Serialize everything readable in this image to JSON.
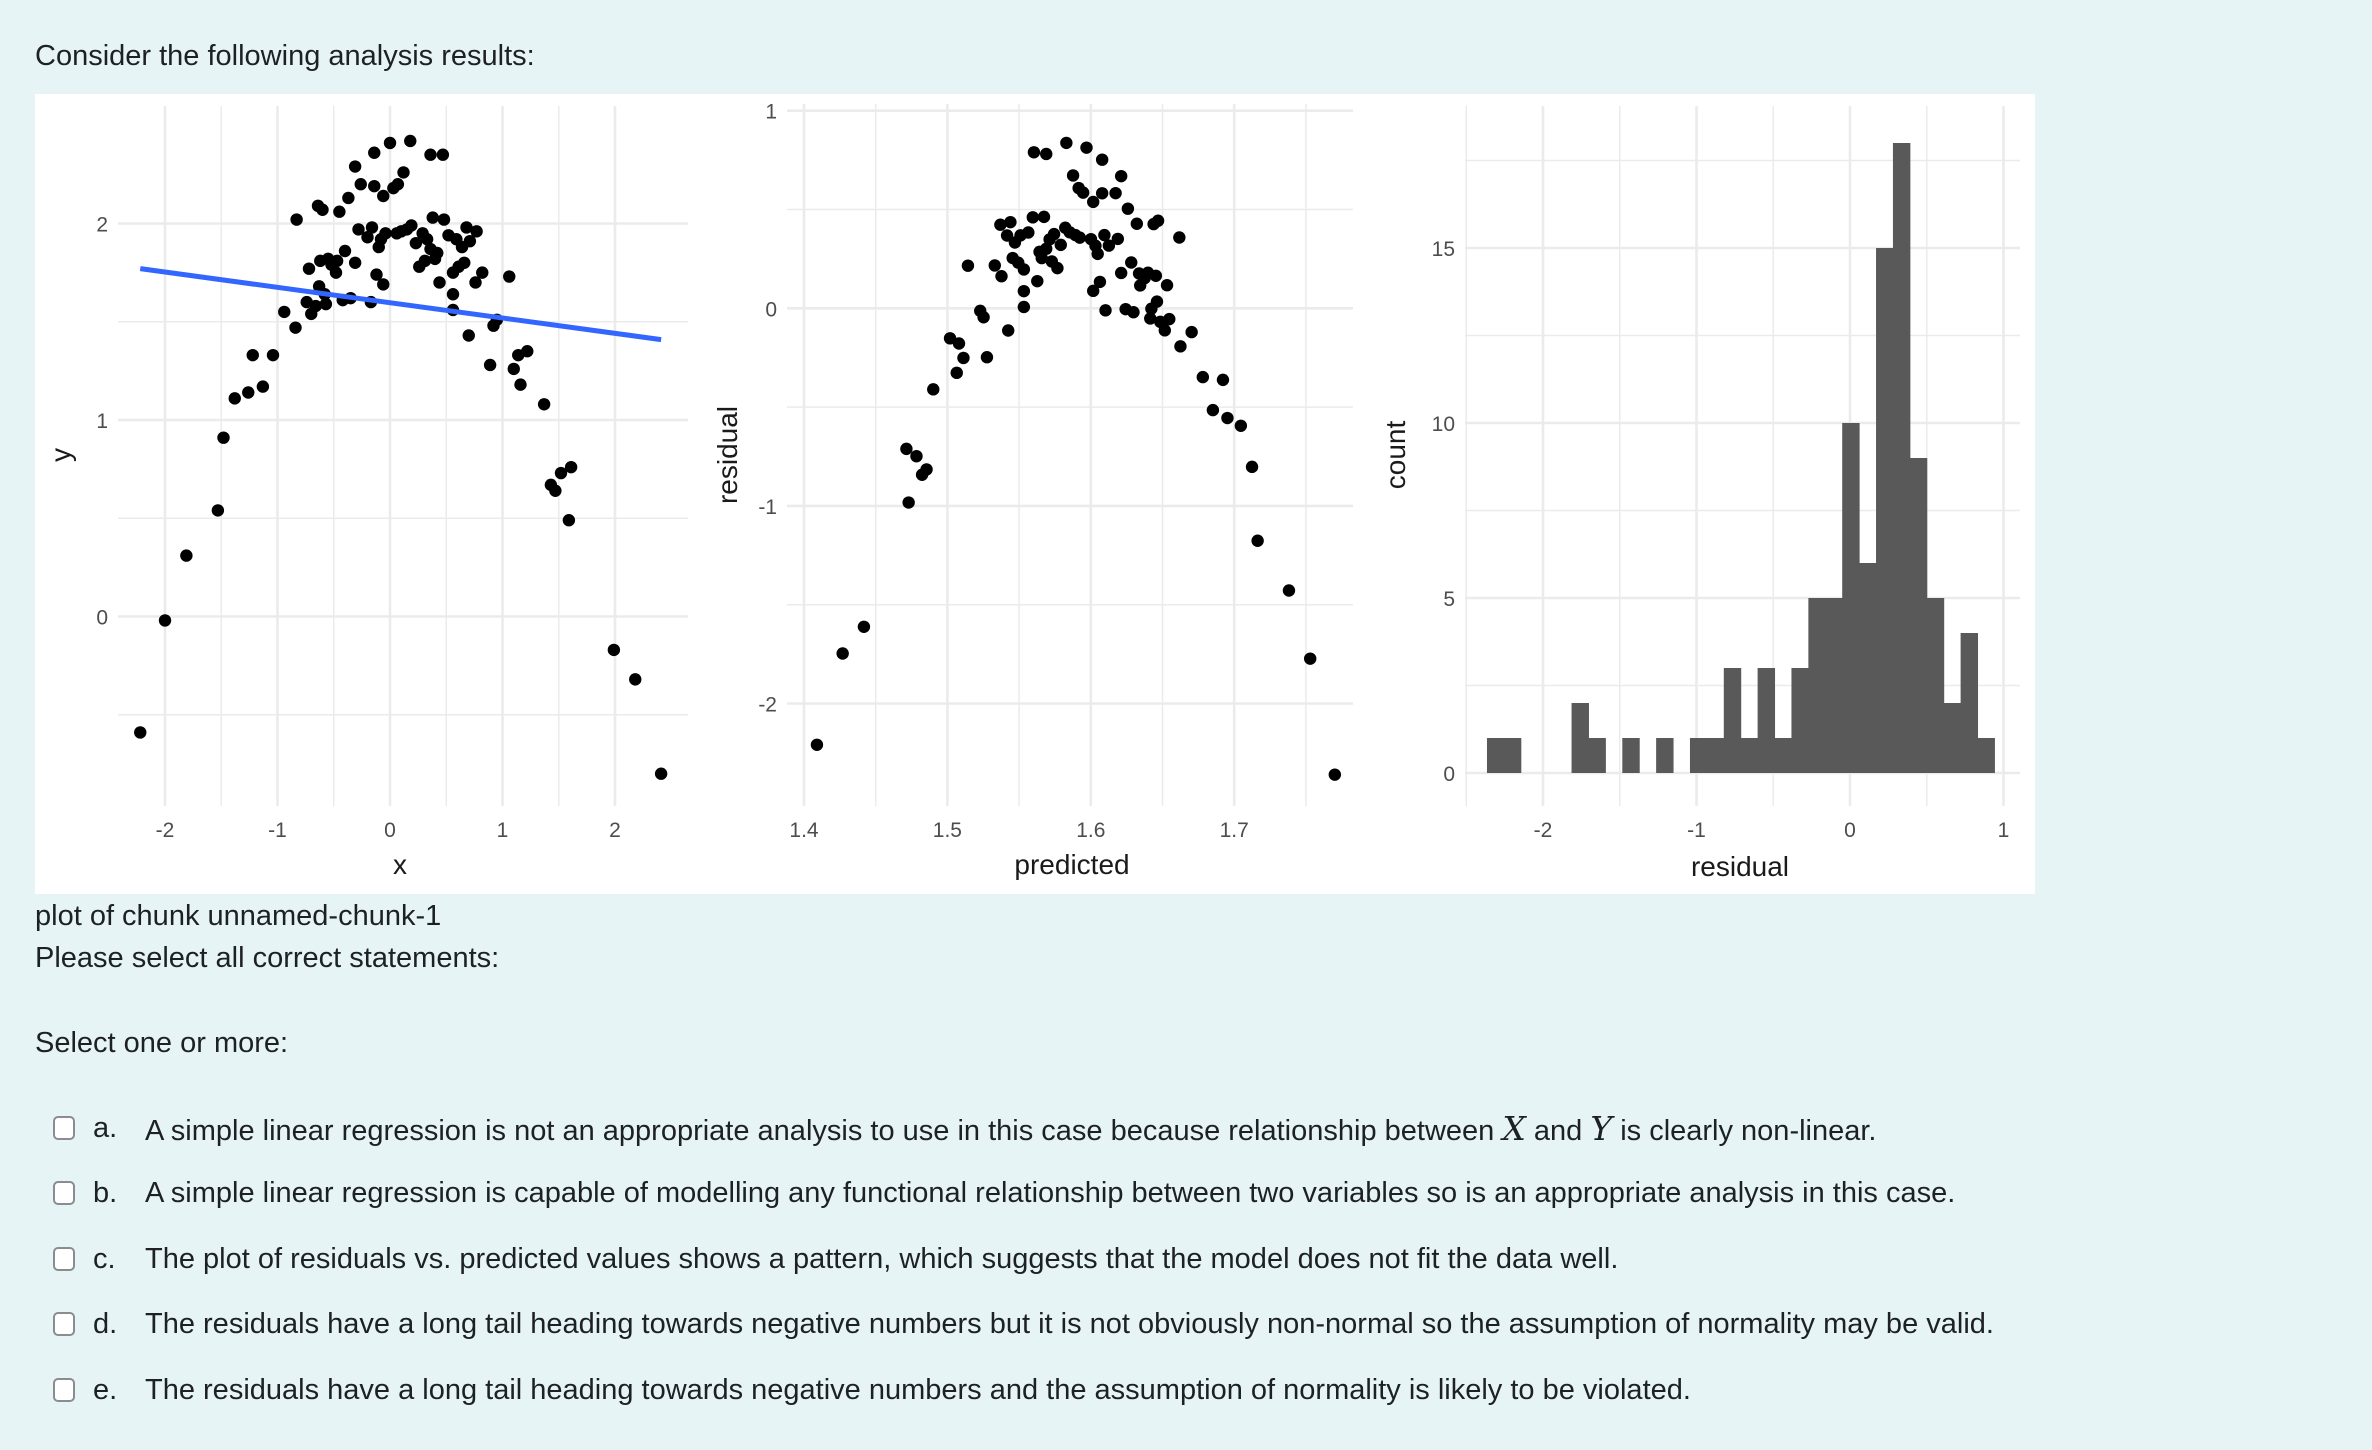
{
  "page": {
    "intro": "Consider the following analysis results:",
    "caption": "plot of chunk unnamed-chunk-1",
    "prompt": "Please select all correct statements:",
    "select_hint": "Select one or more:"
  },
  "options": [
    {
      "letter": "a.",
      "parts": [
        "A simple linear regression is not an appropriate analysis to use in this case because relationship between ",
        "X",
        " and ",
        "Y",
        " is clearly non-linear."
      ],
      "checked": false
    },
    {
      "letter": "b.",
      "parts": [
        "A simple linear regression is capable of modelling any functional relationship between two variables so is an appropriate analysis in this case."
      ],
      "checked": false
    },
    {
      "letter": "c.",
      "parts": [
        "The plot of residuals vs. predicted values shows a pattern, which suggests that the model does not fit the data well."
      ],
      "checked": false
    },
    {
      "letter": "d.",
      "parts": [
        "The residuals have a long tail heading towards negative numbers but it is not obviously non-normal so the assumption of normality may be valid."
      ],
      "checked": false
    },
    {
      "letter": "e.",
      "parts": [
        "The residuals have a long tail heading towards negative numbers and the assumption of normality is likely to be violated."
      ],
      "checked": false
    }
  ],
  "colors": {
    "background": "#e7f4f6",
    "panel": "#ffffff",
    "grid": "#ebebeb",
    "point": "#000000",
    "fit_line": "#3366ff",
    "hist_fill": "#595959",
    "tick_text": "#4d4d4d",
    "axis_title": "#1a1a1a"
  },
  "chart_data": [
    {
      "type": "scatter",
      "title": "",
      "xlabel": "x",
      "ylabel": "y",
      "xlim": [
        -2.35,
        2.55
      ],
      "ylim": [
        -0.98,
        2.58
      ],
      "xticks": [
        -2,
        -1,
        0,
        1,
        2
      ],
      "yticks": [
        0,
        1,
        2
      ],
      "grid": true,
      "fit_line": {
        "intercept": 1.597,
        "slope": -0.078,
        "x_range": [
          -2.22,
          2.41
        ],
        "color": "#3366ff"
      },
      "points": [
        [
          -2.22,
          -0.59
        ],
        [
          -2.0,
          -0.02
        ],
        [
          -1.81,
          0.31
        ],
        [
          -1.53,
          0.54
        ],
        [
          -1.48,
          0.91
        ],
        [
          -1.38,
          1.11
        ],
        [
          -1.26,
          1.14
        ],
        [
          -1.13,
          1.17
        ],
        [
          -1.22,
          1.33
        ],
        [
          -1.04,
          1.33
        ],
        [
          -0.94,
          1.55
        ],
        [
          -0.84,
          1.47
        ],
        [
          -0.83,
          2.02
        ],
        [
          -0.74,
          1.6
        ],
        [
          -0.72,
          1.77
        ],
        [
          -0.7,
          1.54
        ],
        [
          -0.64,
          2.09
        ],
        [
          -0.63,
          1.68
        ],
        [
          -0.62,
          1.81
        ],
        [
          -0.6,
          2.07
        ],
        [
          -0.58,
          1.64
        ],
        [
          -0.57,
          1.59
        ],
        [
          -0.55,
          1.82
        ],
        [
          -0.48,
          1.75
        ],
        [
          -0.47,
          1.81
        ],
        [
          -0.45,
          2.06
        ],
        [
          -0.42,
          1.61
        ],
        [
          -0.4,
          1.86
        ],
        [
          -0.37,
          2.13
        ],
        [
          -0.31,
          2.29
        ],
        [
          -0.31,
          1.8
        ],
        [
          -0.26,
          2.2
        ],
        [
          -0.17,
          1.6
        ],
        [
          -0.16,
          1.98
        ],
        [
          -0.14,
          2.36
        ],
        [
          -0.14,
          2.19
        ],
        [
          -0.12,
          1.74
        ],
        [
          -0.1,
          1.88
        ],
        [
          -0.06,
          2.14
        ],
        [
          -0.06,
          1.69
        ],
        [
          -0.04,
          1.95
        ],
        [
          0.0,
          2.41
        ],
        [
          0.03,
          2.18
        ],
        [
          0.06,
          1.95
        ],
        [
          0.07,
          2.2
        ],
        [
          0.15,
          1.97
        ],
        [
          0.18,
          2.42
        ],
        [
          0.19,
          1.99
        ],
        [
          0.26,
          1.78
        ],
        [
          0.29,
          1.95
        ],
        [
          0.31,
          1.81
        ],
        [
          0.33,
          1.92
        ],
        [
          0.36,
          2.35
        ],
        [
          0.36,
          1.87
        ],
        [
          0.38,
          2.03
        ],
        [
          0.42,
          1.85
        ],
        [
          0.47,
          2.35
        ],
        [
          0.48,
          2.02
        ],
        [
          0.56,
          1.75
        ],
        [
          0.56,
          1.64
        ],
        [
          0.56,
          1.56
        ],
        [
          0.59,
          1.92
        ],
        [
          0.61,
          1.78
        ],
        [
          0.68,
          1.98
        ],
        [
          0.7,
          1.43
        ],
        [
          0.71,
          1.91
        ],
        [
          0.76,
          1.7
        ],
        [
          0.77,
          1.96
        ],
        [
          0.82,
          1.75
        ],
        [
          0.89,
          1.28
        ],
        [
          0.92,
          1.48
        ],
        [
          0.95,
          1.51
        ],
        [
          1.06,
          1.73
        ],
        [
          1.1,
          1.26
        ],
        [
          1.14,
          1.33
        ],
        [
          1.16,
          1.18
        ],
        [
          1.22,
          1.35
        ],
        [
          1.37,
          1.08
        ],
        [
          1.43,
          0.67
        ],
        [
          1.47,
          0.64
        ],
        [
          1.52,
          0.73
        ],
        [
          1.59,
          0.49
        ],
        [
          1.61,
          0.76
        ],
        [
          1.99,
          -0.17
        ],
        [
          2.18,
          -0.32
        ],
        [
          2.41,
          -0.8
        ],
        [
          -0.66,
          1.58
        ],
        [
          -0.52,
          1.79
        ],
        [
          -0.35,
          1.62
        ],
        [
          -0.2,
          1.93
        ],
        [
          0.1,
          1.96
        ],
        [
          0.23,
          1.9
        ],
        [
          0.4,
          1.82
        ],
        [
          0.52,
          1.94
        ],
        [
          0.64,
          1.88
        ],
        [
          -0.28,
          1.97
        ],
        [
          0.12,
          2.26
        ],
        [
          -0.08,
          1.92
        ],
        [
          0.44,
          1.7
        ],
        [
          0.66,
          1.8
        ]
      ]
    },
    {
      "type": "scatter",
      "title": "",
      "xlabel": "predicted",
      "ylabel": "residual",
      "xlim": [
        1.387,
        1.783
      ],
      "ylim": [
        -2.52,
        1.05
      ],
      "xticks": [
        1.4,
        1.5,
        1.6,
        1.7
      ],
      "yticks": [
        -2,
        -1,
        0,
        1
      ],
      "grid": true,
      "derived_from": "residuals of linear fit y ~ x (predicted = 1.597 - 0.078*x, residual = y - predicted)"
    },
    {
      "type": "bar",
      "subtype": "histogram",
      "title": "",
      "xlabel": "residual",
      "ylabel": "count",
      "xlim": [
        -2.52,
        1.08
      ],
      "ylim": [
        -0.95,
        19
      ],
      "xticks": [
        -2,
        -1,
        0,
        1
      ],
      "yticks": [
        0,
        5,
        10,
        15
      ],
      "grid": true,
      "bin_start": -2.365,
      "bin_width": 0.1102,
      "counts": [
        1,
        1,
        0,
        0,
        0,
        2,
        1,
        0,
        1,
        0,
        1,
        0,
        1,
        1,
        3,
        1,
        3,
        1,
        3,
        5,
        5,
        10,
        6,
        15,
        18,
        9,
        5,
        2,
        4,
        1
      ]
    }
  ]
}
